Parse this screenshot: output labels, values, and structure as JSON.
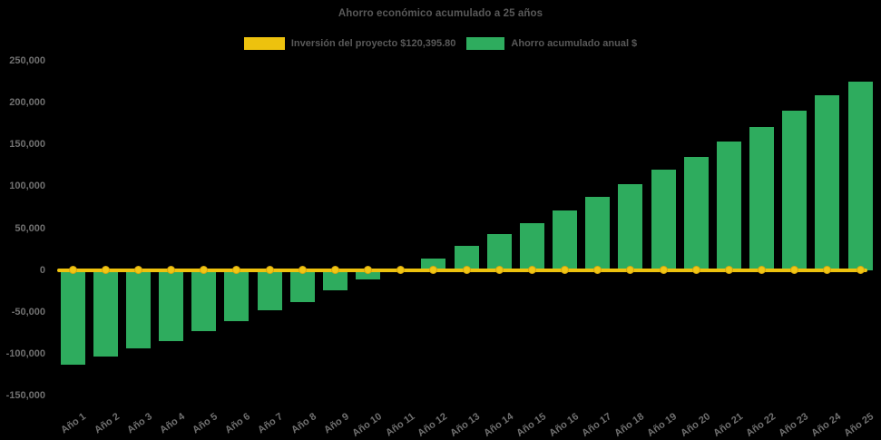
{
  "title": "Ahorro económico acumulado a 25 años",
  "legend": [
    {
      "label": "Inversión del proyecto $120,395.80",
      "color": "#EDC20E",
      "swatch": "yellow-swatch"
    },
    {
      "label": "Ahorro acumulado anual $",
      "color": "#2EAC5E",
      "swatch": "green-swatch"
    }
  ],
  "colors": {
    "background": "#000000",
    "bar_green": "#2EAC5E",
    "line_yellow": "#EDC20E",
    "marker_yellow": "#F0C614",
    "marker_border": "#D9A50C",
    "title_text": "#595959",
    "legend_text": "#595959",
    "axis_text": "#707070"
  },
  "chart_data": {
    "type": "bar",
    "title": "Ahorro económico acumulado a 25 años",
    "categories": [
      "Año 1",
      "Año 2",
      "Año 3",
      "Año 4",
      "Año 5",
      "Año 6",
      "Año 7",
      "Año 8",
      "Año 9",
      "Año 10",
      "Año 11",
      "Año 12",
      "Año 13",
      "Año 14",
      "Año 15",
      "Año 16",
      "Año 17",
      "Año 18",
      "Año 19",
      "Año 20",
      "Año 21",
      "Año 22",
      "Año 23",
      "Año 24",
      "Año 25"
    ],
    "series": [
      {
        "name": "Ahorro acumulado anual $",
        "type": "bar",
        "color": "#2EAC5E",
        "values": [
          -113000,
          -103500,
          -94000,
          -85000,
          -72500,
          -61000,
          -48500,
          -38000,
          -24000,
          -11000,
          500,
          14000,
          28500,
          43000,
          56500,
          71500,
          87000,
          102500,
          119500,
          135500,
          153000,
          171000,
          190000,
          208500,
          225500
        ]
      },
      {
        "name": "Inversión del proyecto $120,395.80",
        "type": "line",
        "color": "#EDC20E",
        "constant_value": 0,
        "markers": "circle"
      }
    ],
    "xlabel": "",
    "ylabel": "",
    "ylim": [
      -150000,
      250000
    ],
    "ytick_step": 50000,
    "ytick_labels": [
      "250,000",
      "200,000",
      "150,000",
      "100,000",
      "50,000",
      "0",
      "-50,000",
      "-100,000",
      "-150,000"
    ],
    "grid": false,
    "legend_position": "top"
  }
}
